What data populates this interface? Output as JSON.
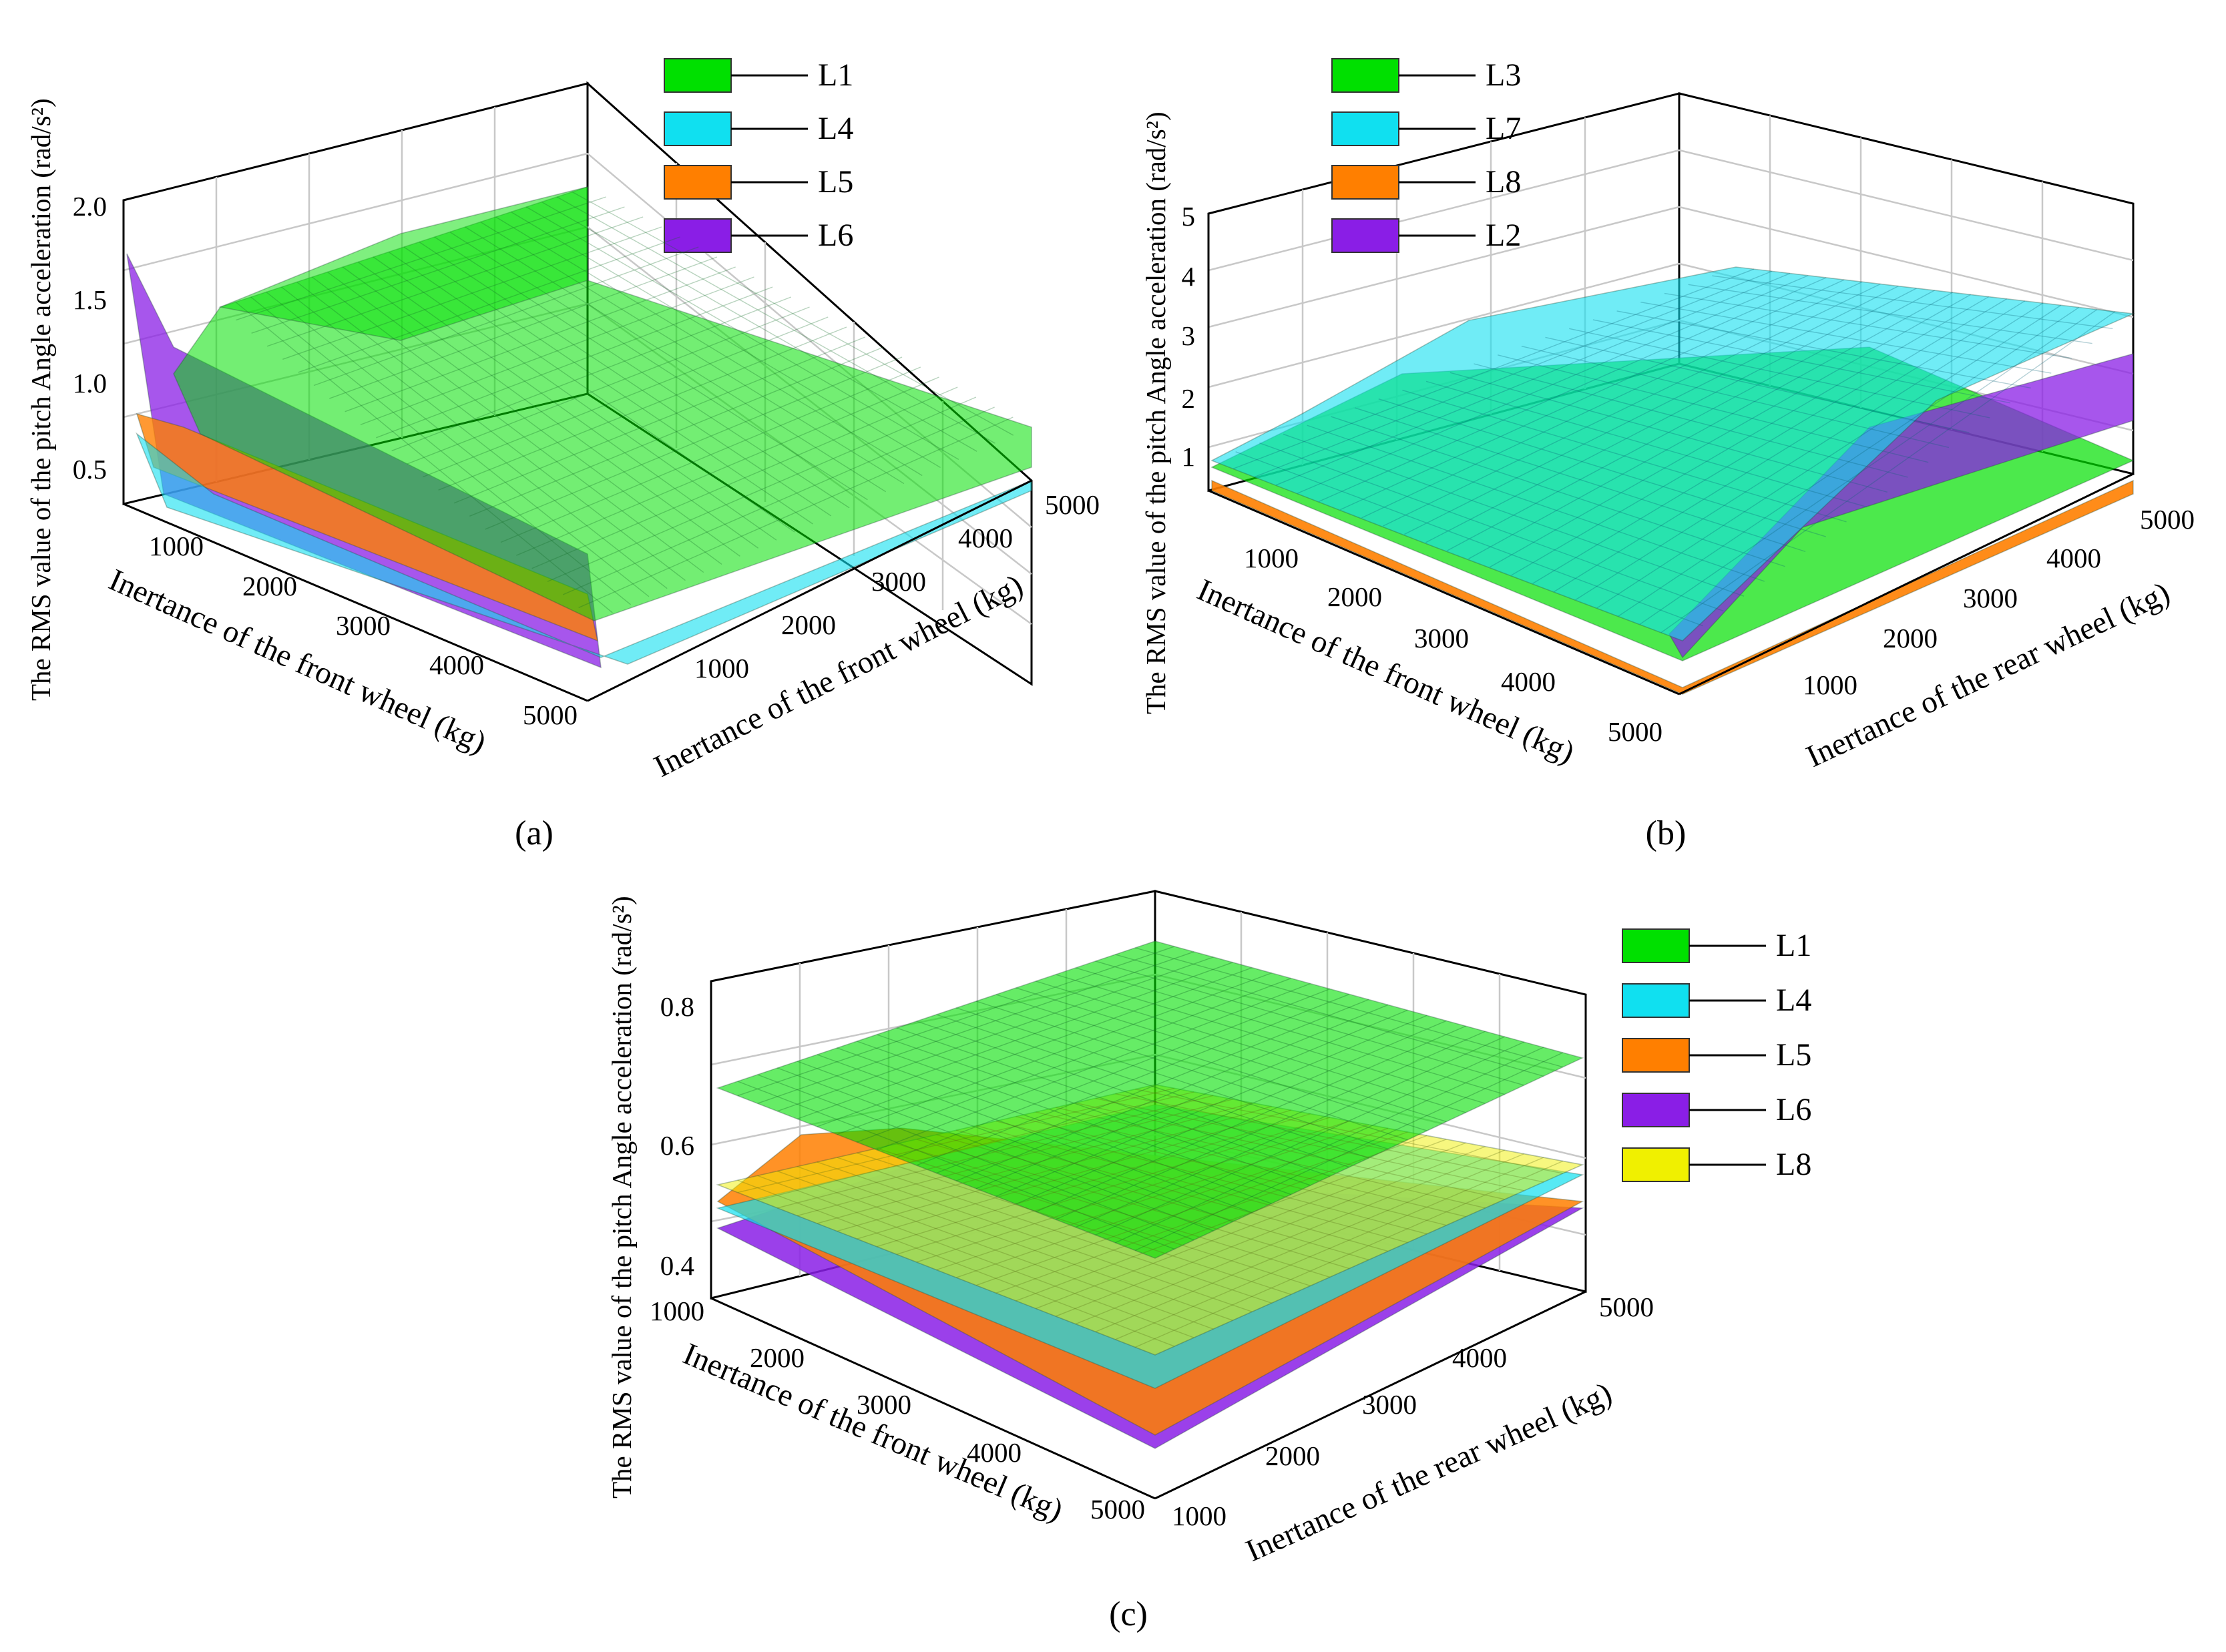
{
  "chart_data": [
    {
      "type": "surface3d",
      "caption": "(a)",
      "ylabel": "The RMS value of the pitch Angle acceleration (rad/s²)",
      "xlabel": "Inertance of the front wheel (kg)",
      "zlabel": "Inertance of the front wheel (kg)",
      "x_ticks": [
        "1000",
        "2000",
        "3000",
        "4000",
        "5000"
      ],
      "z_ticks": [
        "1000",
        "2000",
        "3000",
        "4000",
        "5000"
      ],
      "y_ticks": [
        "0.5",
        "1.0",
        "1.5",
        "2.0"
      ],
      "ylim": [
        0.3,
        2.0
      ],
      "legend": [
        "L1",
        "L4",
        "L5",
        "L6"
      ],
      "series": [
        {
          "name": "L1",
          "color": "#00e000",
          "back_left": 1.35,
          "back_right": 1.55,
          "front_right": 0.62
        },
        {
          "name": "L4",
          "color": "#10e0f0",
          "back_left": 0.55,
          "back_right": 0.5,
          "front_right": 0.35
        },
        {
          "name": "L5",
          "color": "#ff7f00",
          "back_left": 0.8,
          "back_right": 0.45,
          "front_right": 0.32
        },
        {
          "name": "L6",
          "color": "#8a1ee6",
          "back_left": 1.7,
          "back_right": 0.4,
          "front_right": 0.3
        }
      ]
    },
    {
      "type": "surface3d",
      "caption": "(b)",
      "ylabel": "The RMS value of the pitch Angle acceleration (rad/s²)",
      "xlabel": "Inertance of the front wheel (kg)",
      "zlabel": "Inertance of the rear wheel (kg)",
      "x_ticks": [
        "1000",
        "2000",
        "3000",
        "4000",
        "5000"
      ],
      "z_ticks": [
        "1000",
        "2000",
        "3000",
        "4000",
        "5000"
      ],
      "y_ticks": [
        "1",
        "2",
        "3",
        "4",
        "5"
      ],
      "ylim": [
        0.3,
        5
      ],
      "legend": [
        "L3",
        "L7",
        "L8",
        "L2"
      ],
      "series": [
        {
          "name": "L3",
          "color": "#00e000",
          "front_left": 0.9,
          "front_right": 0.8
        },
        {
          "name": "L7",
          "color": "#10e0f0",
          "front_left": 1.2,
          "front_right": 3.6
        },
        {
          "name": "L8",
          "color": "#ff7f00",
          "front_left": 0.6,
          "front_right": 0.5
        },
        {
          "name": "L2",
          "color": "#8a1ee6",
          "front_left": 0.7,
          "front_right": 2.8
        }
      ]
    },
    {
      "type": "surface3d",
      "caption": "(c)",
      "ylabel": "The RMS value of the pitch Angle acceleration (rad/s²)",
      "xlabel": "Inertance of the front wheel (kg)",
      "zlabel": "Inertance of the rear wheel (kg)",
      "x_ticks": [
        "1000",
        "2000",
        "3000",
        "4000",
        "5000"
      ],
      "z_ticks": [
        "1000",
        "2000",
        "3000",
        "4000",
        "5000"
      ],
      "y_ticks": [
        "0.4",
        "0.6",
        "0.8"
      ],
      "ylim": [
        0.38,
        0.88
      ],
      "legend": [
        "L1",
        "L4",
        "L5",
        "L6",
        "L8"
      ],
      "series": [
        {
          "name": "L1",
          "color": "#00e000",
          "value_range": [
            0.68,
            0.86
          ]
        },
        {
          "name": "L4",
          "color": "#10e0f0",
          "value_range": [
            0.47,
            0.57
          ]
        },
        {
          "name": "L5",
          "color": "#ff7f00",
          "value_range": [
            0.43,
            0.58
          ]
        },
        {
          "name": "L6",
          "color": "#8a1ee6",
          "value_range": [
            0.42,
            0.5
          ]
        },
        {
          "name": "L8",
          "color": "#f0f000",
          "value_range": [
            0.52,
            0.6
          ]
        }
      ]
    }
  ]
}
